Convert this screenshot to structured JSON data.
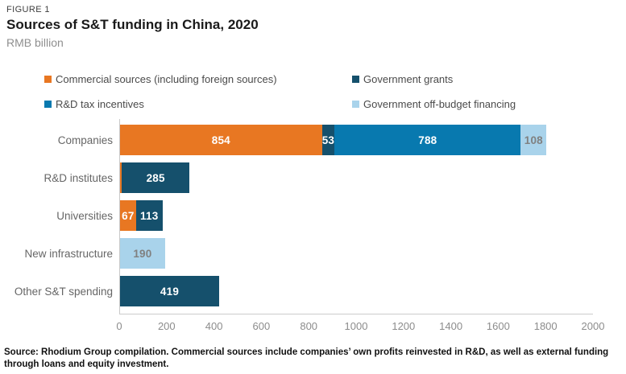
{
  "header": {
    "figure_label": "FIGURE 1",
    "title": "Sources of S&T funding in China, 2020",
    "subtitle": "RMB billion"
  },
  "colors": {
    "commercial": "#E87722",
    "grants": "#15506C",
    "tax": "#0879AF",
    "offbudget": "#A9D3EB",
    "axis_line": "#C9C9C9",
    "tick_text": "#8C8C8C",
    "category_text": "#666666",
    "value_text_light_segment": "#808080"
  },
  "legend": [
    {
      "label": "Commercial sources (including foreign sources)",
      "series": "commercial"
    },
    {
      "label": "Government grants",
      "series": "grants"
    },
    {
      "label": "R&D tax incentives",
      "series": "tax"
    },
    {
      "label": "Government off-budget financing",
      "series": "offbudget"
    }
  ],
  "chart_data": {
    "type": "bar",
    "orientation": "horizontal",
    "stacked": true,
    "title": "Sources of S&T funding in China, 2020",
    "unit": "RMB billion",
    "xlim": [
      0,
      2000
    ],
    "xticks": [
      0,
      200,
      400,
      600,
      800,
      1000,
      1200,
      1400,
      1600,
      1800,
      2000
    ],
    "grid": false,
    "legend_position": "top",
    "categories": [
      "Companies",
      "R&D institutes",
      "Universities",
      "New infrastructure",
      "Other S&T spending"
    ],
    "rows": [
      {
        "category": "Companies",
        "segments": [
          {
            "series": "commercial",
            "value": 854,
            "label": "854"
          },
          {
            "series": "grants",
            "value": 53,
            "label": "53"
          },
          {
            "series": "tax",
            "value": 788,
            "label": "788"
          },
          {
            "series": "offbudget",
            "value": 108,
            "label": "108"
          }
        ]
      },
      {
        "category": "R&D institutes",
        "segments": [
          {
            "series": "commercial",
            "value": 8,
            "label": ""
          },
          {
            "series": "grants",
            "value": 285,
            "label": "285"
          }
        ]
      },
      {
        "category": "Universities",
        "segments": [
          {
            "series": "commercial",
            "value": 67,
            "label": "67"
          },
          {
            "series": "grants",
            "value": 113,
            "label": "113"
          }
        ]
      },
      {
        "category": "New infrastructure",
        "segments": [
          {
            "series": "offbudget",
            "value": 190,
            "label": "190"
          }
        ]
      },
      {
        "category": "Other S&T spending",
        "segments": [
          {
            "series": "grants",
            "value": 419,
            "label": "419"
          }
        ]
      }
    ]
  },
  "footer": {
    "source": "Source: Rhodium Group compilation. Commercial sources include companies’ own profits reinvested in R&D, as well as external funding through loans and equity investment."
  }
}
